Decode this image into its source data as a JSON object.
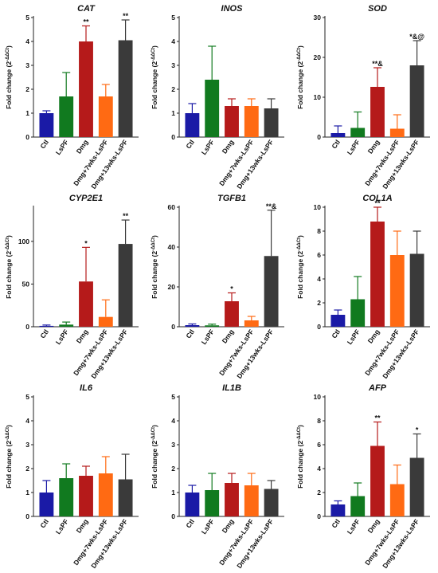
{
  "categories": [
    "Ctl",
    "LsPF",
    "Dmg",
    "Dmg+7wks-LsPF",
    "Dmg+13wks-LsPF"
  ],
  "colors": [
    "#1a1aa6",
    "#117a1f",
    "#b51a1a",
    "#ff6a13",
    "#3a3a3a"
  ],
  "ylabel": "Fold change (2",
  "ylabel_sup": "-ΔΔCt",
  "chart_data": [
    {
      "type": "bar",
      "title": "CAT",
      "ylim": [
        0,
        5
      ],
      "ticks": [
        0,
        1,
        2,
        3,
        4,
        5
      ],
      "values": [
        1.0,
        1.7,
        4.0,
        1.7,
        4.05
      ],
      "errors": [
        0.1,
        1.0,
        0.65,
        0.5,
        0.85
      ],
      "annotations": [
        "",
        "",
        "**",
        "",
        "**"
      ]
    },
    {
      "type": "bar",
      "title": "INOS",
      "ylim": [
        0,
        5
      ],
      "ticks": [
        0,
        1,
        2,
        3,
        4,
        5
      ],
      "values": [
        1.0,
        2.4,
        1.3,
        1.3,
        1.2
      ],
      "errors": [
        0.4,
        1.4,
        0.3,
        0.3,
        0.4
      ],
      "annotations": [
        "",
        "",
        "",
        "",
        ""
      ]
    },
    {
      "type": "bar",
      "title": "SOD",
      "ylim": [
        0,
        30
      ],
      "ticks": [
        0,
        10,
        20,
        30
      ],
      "values": [
        1.0,
        2.3,
        12.6,
        2.1,
        18.0
      ],
      "errors": [
        1.8,
        4.0,
        4.8,
        3.5,
        6.2
      ],
      "annotations": [
        "",
        "",
        "**&",
        "",
        "*&@"
      ]
    },
    {
      "type": "bar",
      "title": "CYP2E1",
      "ylim": [
        0,
        140
      ],
      "ticks": [
        0,
        50,
        100
      ],
      "values": [
        1.0,
        2.5,
        53.0,
        11.5,
        97.0
      ],
      "errors": [
        1.0,
        3.0,
        40.0,
        20.0,
        28.0
      ],
      "annotations": [
        "",
        "",
        "*",
        "",
        "**"
      ]
    },
    {
      "type": "bar",
      "title": "TGFB1",
      "ylim": [
        0,
        60
      ],
      "ticks": [
        0,
        20,
        40,
        60
      ],
      "values": [
        0.8,
        0.7,
        12.8,
        3.2,
        35.5
      ],
      "errors": [
        0.6,
        0.6,
        4.2,
        2.0,
        23.0
      ],
      "annotations": [
        "",
        "",
        "*",
        "",
        "**&"
      ]
    },
    {
      "type": "bar",
      "title": "COL1A",
      "ylim": [
        0,
        10
      ],
      "ticks": [
        0,
        2,
        4,
        6,
        8,
        10
      ],
      "values": [
        1.0,
        2.3,
        8.8,
        6.0,
        6.1
      ],
      "errors": [
        0.4,
        1.9,
        1.2,
        2.0,
        1.9
      ],
      "annotations": [
        "",
        "",
        "**",
        "",
        ""
      ]
    },
    {
      "type": "bar",
      "title": "IL6",
      "ylim": [
        0,
        5
      ],
      "ticks": [
        0,
        1,
        2,
        3,
        4,
        5
      ],
      "values": [
        1.0,
        1.6,
        1.7,
        1.8,
        1.55
      ],
      "errors": [
        0.5,
        0.6,
        0.4,
        0.7,
        1.05
      ],
      "annotations": [
        "",
        "",
        "",
        "",
        ""
      ]
    },
    {
      "type": "bar",
      "title": "IL1B",
      "ylim": [
        0,
        5
      ],
      "ticks": [
        0,
        1,
        2,
        3,
        4,
        5
      ],
      "values": [
        1.0,
        1.1,
        1.4,
        1.3,
        1.15
      ],
      "errors": [
        0.3,
        0.7,
        0.4,
        0.5,
        0.35
      ],
      "annotations": [
        "",
        "",
        "",
        "",
        ""
      ]
    },
    {
      "type": "bar",
      "title": "AFP",
      "ylim": [
        0,
        10
      ],
      "ticks": [
        0,
        2,
        4,
        6,
        8,
        10
      ],
      "values": [
        1.0,
        1.7,
        5.9,
        2.7,
        4.9
      ],
      "errors": [
        0.3,
        1.1,
        2.0,
        1.6,
        2.0
      ],
      "annotations": [
        "",
        "",
        "**",
        "",
        "*"
      ]
    }
  ]
}
